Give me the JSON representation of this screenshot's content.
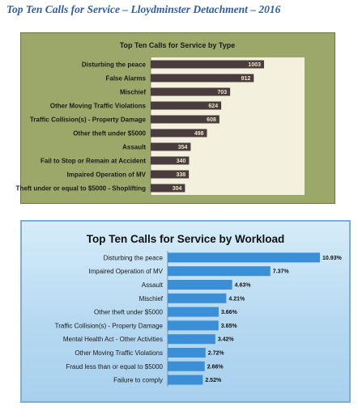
{
  "page_title": "Top Ten Calls for Service – Lloydminster Detachment – 2016",
  "chart_data": [
    {
      "type": "bar",
      "orientation": "horizontal",
      "title": "Top Ten Calls for Service by Type",
      "categories": [
        "Disturbing the peace",
        "False Alarms",
        "Mischief",
        "Other Moving Traffic Violations",
        "Traffic Collision(s) - Property Damage",
        "Other theft under $5000",
        "Assault",
        "Fail to Stop or Remain at Accident",
        "Impaired Operation of MV",
        "Theft under or equal to $5000 - Shoplifting"
      ],
      "values": [
        1003,
        912,
        703,
        624,
        608,
        498,
        354,
        340,
        338,
        304
      ],
      "value_labels": [
        "1003",
        "912",
        "703",
        "624",
        "608",
        "498",
        "354",
        "340",
        "338",
        "304"
      ],
      "colors": {
        "panel": "#9ca86a",
        "plot": "#f3f1de",
        "bar": "#4a3d3d"
      }
    },
    {
      "type": "bar",
      "orientation": "horizontal",
      "title": "Top Ten Calls for Service by Workload",
      "categories": [
        "Disturbing the peace",
        "Impaired Operation of MV",
        "Assault",
        "Mischief",
        "Other theft under $5000",
        "Traffic Collision(s) - Property Damage",
        "Mental Health Act - Other Activities",
        "Other Moving Traffic Violations",
        "Fraud less than or equal to $5000",
        "Failure to comply"
      ],
      "values": [
        10.93,
        7.37,
        4.63,
        4.21,
        3.66,
        3.65,
        3.42,
        2.72,
        2.66,
        2.52
      ],
      "value_labels": [
        "10.93%",
        "7.37%",
        "4.63%",
        "4.21%",
        "3.66%",
        "3.65%",
        "3.42%",
        "2.72%",
        "2.66%",
        "2.52%"
      ],
      "colors": {
        "panel": "#b6d9f1",
        "bar": "#3a8fd6"
      }
    }
  ]
}
